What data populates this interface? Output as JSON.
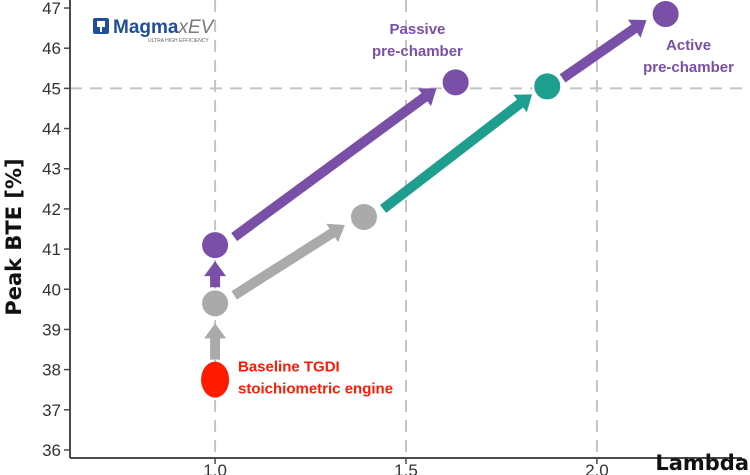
{
  "logo": {
    "brand": "Magma",
    "suffix": "xEV",
    "tagline": "ULTRA HIGH EFFICIENCY",
    "icon": "engine-piston-icon",
    "colors": {
      "brand": "#1f4e9a",
      "suffix": "#7a7a7a"
    }
  },
  "chart_data": {
    "type": "scatter",
    "xlabel": "Lambda",
    "ylabel": "Peak BTE [%]",
    "xlim": [
      0.62,
      2.38
    ],
    "ylim": [
      35.8,
      47.2
    ],
    "x_ticks": [
      "1.0",
      "1.5",
      "2.0"
    ],
    "x_tick_values": [
      1.0,
      1.5,
      2.0
    ],
    "y_ticks": [
      "36",
      "37",
      "38",
      "39",
      "40",
      "41",
      "42",
      "43",
      "44",
      "45",
      "46",
      "47"
    ],
    "y_tick_values": [
      36,
      37,
      38,
      39,
      40,
      41,
      42,
      43,
      44,
      45,
      46,
      47
    ],
    "grid": "dashed",
    "reference_lines": {
      "x": [
        1.0,
        1.5,
        2.0
      ],
      "y": [
        45
      ]
    },
    "colors": {
      "baseline": "#ff1a00",
      "gray": "#aaaaaa",
      "purple": "#7a4fa8",
      "teal": "#1e9e8f"
    },
    "points": [
      {
        "name": "baseline",
        "x": 1.0,
        "y": 37.75,
        "color": "baseline",
        "ellipse": true
      },
      {
        "name": "gray-1",
        "x": 1.0,
        "y": 39.65,
        "color": "gray"
      },
      {
        "name": "gray-2",
        "x": 1.39,
        "y": 41.8,
        "color": "gray"
      },
      {
        "name": "purple-1",
        "x": 1.0,
        "y": 41.1,
        "color": "purple"
      },
      {
        "name": "purple-passive",
        "x": 1.63,
        "y": 45.15,
        "color": "purple"
      },
      {
        "name": "teal-1",
        "x": 1.87,
        "y": 45.05,
        "color": "teal"
      },
      {
        "name": "purple-active",
        "x": 2.18,
        "y": 46.85,
        "color": "purple"
      }
    ],
    "arrows": [
      {
        "name": "baseline-to-gray",
        "from": [
          1.0,
          38.25
        ],
        "to": [
          1.0,
          39.15
        ],
        "color": "gray"
      },
      {
        "name": "gray-to-purple",
        "from": [
          1.0,
          40.05
        ],
        "to": [
          1.0,
          40.7
        ],
        "color": "purple"
      },
      {
        "name": "gray-to-gray",
        "from": [
          1.05,
          39.85
        ],
        "to": [
          1.34,
          41.6
        ],
        "color": "gray"
      },
      {
        "name": "purple-to-passive",
        "from": [
          1.05,
          41.3
        ],
        "to": [
          1.58,
          45.0
        ],
        "color": "purple"
      },
      {
        "name": "gray-to-teal",
        "from": [
          1.44,
          42.0
        ],
        "to": [
          1.83,
          44.85
        ],
        "color": "teal"
      },
      {
        "name": "teal-to-active",
        "from": [
          1.91,
          45.25
        ],
        "to": [
          2.13,
          46.7
        ],
        "color": "purple"
      }
    ],
    "annotations": [
      {
        "name": "baseline-label",
        "lines": [
          "Baseline TGDI",
          "stoichiometric engine"
        ],
        "x": 1.06,
        "y": 37.95,
        "anchor": "start",
        "color": "baseline"
      },
      {
        "name": "passive-label",
        "lines": [
          "Passive",
          "pre-chamber"
        ],
        "x": 1.53,
        "y": 46.35,
        "anchor": "middle",
        "color": "purple"
      },
      {
        "name": "active-label",
        "lines": [
          "Active",
          "pre-chamber"
        ],
        "x": 2.24,
        "y": 45.95,
        "anchor": "middle",
        "color": "purple"
      }
    ]
  }
}
